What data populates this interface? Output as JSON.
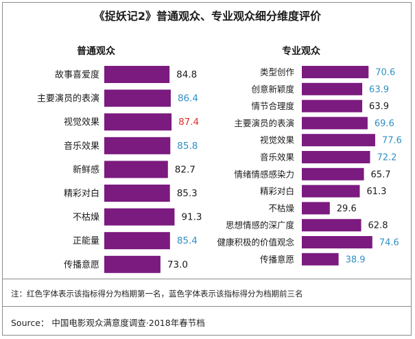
{
  "title": "《捉妖记2》普通观众、专业观众细分维度评价",
  "note": "注：红色字体表示该指标得分为档期第一名，蓝色字体表示该指标得分为档期前三名",
  "source": "Source：  中国电影观众满意度调查·2018年春节档",
  "colors": {
    "bar": "#7b1a7f",
    "normal": "#1a1a1a",
    "first": "#e0302a",
    "top3": "#2f8fc4"
  },
  "chart_data": [
    {
      "type": "bar",
      "orientation": "horizontal",
      "title": "普通观众",
      "categories": [
        "故事喜爱度",
        "主要演员的表演",
        "视觉效果",
        "音乐效果",
        "新鲜感",
        "精彩对白",
        "不枯燥",
        "正能量",
        "传播意愿"
      ],
      "values": [
        84.8,
        86.4,
        87.4,
        85.8,
        82.7,
        85.3,
        91.3,
        85.4,
        73.0
      ],
      "labels": [
        "84.8",
        "86.4",
        "87.4",
        "85.8",
        "82.7",
        "85.3",
        "91.3",
        "85.4",
        "73.0"
      ],
      "label_rank": [
        "normal",
        "top3",
        "first",
        "top3",
        "normal",
        "normal",
        "normal",
        "top3",
        "normal"
      ]
    },
    {
      "type": "bar",
      "orientation": "horizontal",
      "title": "专业观众",
      "categories": [
        "类型创作",
        "创意新颖度",
        "情节合理度",
        "主要演员的表演",
        "视觉效果",
        "音乐效果",
        "情绪情感感染力",
        "精彩对白",
        "不枯燥",
        "思想情感的深广度",
        "健康积极的价值观念",
        "传播意愿"
      ],
      "values": [
        70.6,
        63.9,
        63.9,
        69.6,
        77.6,
        72.2,
        65.7,
        61.3,
        29.6,
        62.8,
        74.6,
        38.9
      ],
      "labels": [
        "70.6",
        "63.9",
        "63.9",
        "69.6",
        "77.6",
        "72.2",
        "65.7",
        "61.3",
        "29.6",
        "62.8",
        "74.6",
        "38.9"
      ],
      "label_rank": [
        "top3",
        "top3",
        "normal",
        "top3",
        "top3",
        "top3",
        "normal",
        "normal",
        "normal",
        "normal",
        "top3",
        "top3"
      ]
    }
  ]
}
